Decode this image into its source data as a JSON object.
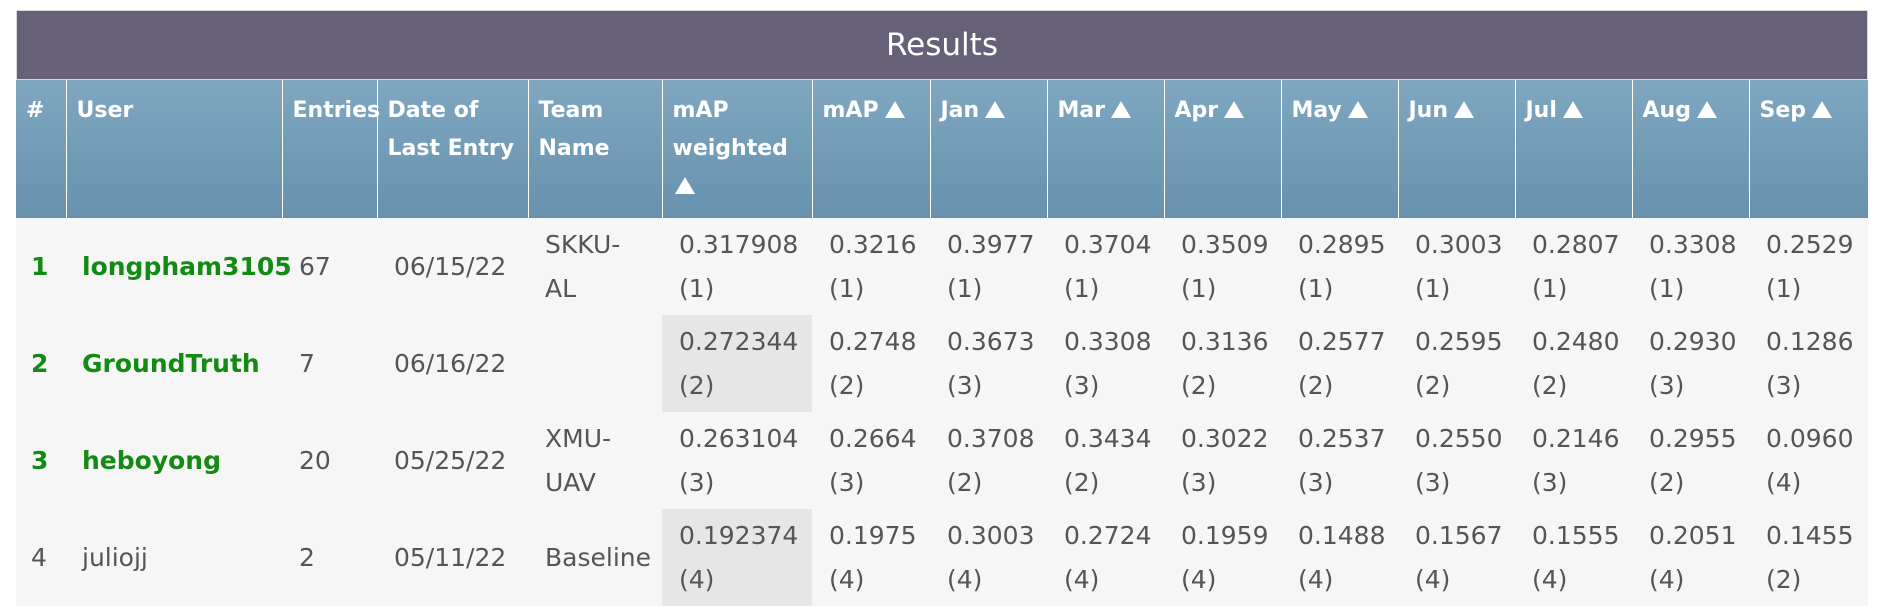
{
  "title": "Results",
  "columns": [
    "#",
    "User",
    "Entries",
    "Date of Last Entry",
    "Team Name",
    "mAP weighted",
    "mAP",
    "Jan",
    "Mar",
    "Apr",
    "May",
    "Jun",
    "Jul",
    "Aug",
    "Sep"
  ],
  "rows": [
    {
      "rank": "1",
      "user": "longpham3105",
      "entries": "67",
      "date": "06/15/22",
      "team": "SKKU-AL",
      "mapw": [
        "0.317908",
        "(1)"
      ],
      "map": [
        "0.3216",
        "(1)"
      ],
      "jan": [
        "0.3977",
        "(1)"
      ],
      "mar": [
        "0.3704",
        "(1)"
      ],
      "apr": [
        "0.3509",
        "(1)"
      ],
      "may": [
        "0.2895",
        "(1)"
      ],
      "jun": [
        "0.3003",
        "(1)"
      ],
      "jul": [
        "0.2807",
        "(1)"
      ],
      "aug": [
        "0.3308",
        "(1)"
      ],
      "sep": [
        "0.2529",
        "(1)"
      ]
    },
    {
      "rank": "2",
      "user": "GroundTruth",
      "entries": "7",
      "date": "06/16/22",
      "team": "",
      "mapw": [
        "0.272344",
        "(2)"
      ],
      "map": [
        "0.2748",
        "(2)"
      ],
      "jan": [
        "0.3673",
        "(3)"
      ],
      "mar": [
        "0.3308",
        "(3)"
      ],
      "apr": [
        "0.3136",
        "(2)"
      ],
      "may": [
        "0.2577",
        "(2)"
      ],
      "jun": [
        "0.2595",
        "(2)"
      ],
      "jul": [
        "0.2480",
        "(2)"
      ],
      "aug": [
        "0.2930",
        "(3)"
      ],
      "sep": [
        "0.1286",
        "(3)"
      ]
    },
    {
      "rank": "3",
      "user": "heboyong",
      "entries": "20",
      "date": "05/25/22",
      "team": "XMU-UAV",
      "mapw": [
        "0.263104",
        "(3)"
      ],
      "map": [
        "0.2664",
        "(3)"
      ],
      "jan": [
        "0.3708",
        "(2)"
      ],
      "mar": [
        "0.3434",
        "(2)"
      ],
      "apr": [
        "0.3022",
        "(3)"
      ],
      "may": [
        "0.2537",
        "(3)"
      ],
      "jun": [
        "0.2550",
        "(3)"
      ],
      "jul": [
        "0.2146",
        "(3)"
      ],
      "aug": [
        "0.2955",
        "(2)"
      ],
      "sep": [
        "0.0960",
        "(4)"
      ]
    },
    {
      "rank": "4",
      "user": "juliojj",
      "entries": "2",
      "date": "05/11/22",
      "team": "Baseline",
      "mapw": [
        "0.192374",
        "(4)"
      ],
      "map": [
        "0.1975",
        "(4)"
      ],
      "jan": [
        "0.3003",
        "(4)"
      ],
      "mar": [
        "0.2724",
        "(4)"
      ],
      "apr": [
        "0.1959",
        "(4)"
      ],
      "may": [
        "0.1488",
        "(4)"
      ],
      "jun": [
        "0.1567",
        "(4)"
      ],
      "jul": [
        "0.1555",
        "(4)"
      ],
      "aug": [
        "0.2051",
        "(4)"
      ],
      "sep": [
        "0.1455",
        "(2)"
      ]
    }
  ]
}
